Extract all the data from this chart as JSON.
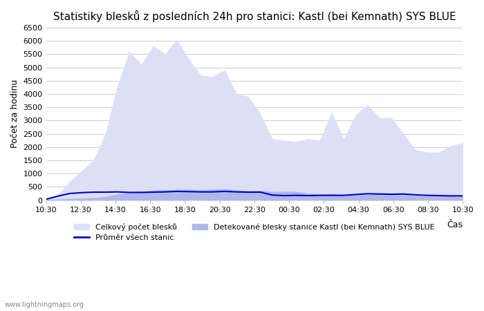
{
  "title": "Statistiky blesků z posledních 24h pro stanici: Kastl (bei Kemnath) SYS BLUE",
  "ylabel": "Počet za hodinu",
  "xlabel": "Čas",
  "watermark": "www.lightningmaps.org",
  "xtick_labels": [
    "10:30",
    "12:30",
    "14:30",
    "16:30",
    "18:30",
    "20:30",
    "22:30",
    "00:30",
    "02:30",
    "04:30",
    "06:30",
    "08:30",
    "10:30"
  ],
  "ylim": [
    0,
    6500
  ],
  "yticks": [
    0,
    500,
    1000,
    1500,
    2000,
    2500,
    3000,
    3500,
    4000,
    4500,
    5000,
    5500,
    6000,
    6500
  ],
  "bg_color": "#ffffff",
  "grid_color": "#cccccc",
  "total_fill_color": "#dde0f5",
  "total_fill_edge": "#c0c4e8",
  "station_fill_color": "#b0b8e8",
  "station_fill_edge": "#6070cc",
  "avg_line_color": "#0000cc",
  "legend_total_label": "Celkový počet blesků",
  "legend_station_label": "Detekované blesky stanice Kastl (bei Kemnath) SYS BLUE",
  "legend_avg_label": "Průměr všech stanic",
  "total_values": [
    50,
    200,
    700,
    1100,
    1500,
    2500,
    4300,
    5600,
    5100,
    5800,
    5500,
    6050,
    5300,
    4700,
    4650,
    4900,
    4000,
    3900,
    3250,
    2300,
    2250,
    2200,
    2300,
    2250,
    3300,
    2300,
    3200,
    3600,
    3100,
    3100,
    2500,
    1900,
    1800,
    1800,
    2050,
    2150
  ],
  "station_values": [
    10,
    30,
    50,
    70,
    90,
    130,
    220,
    290,
    310,
    370,
    380,
    390,
    400,
    380,
    400,
    420,
    370,
    340,
    360,
    310,
    320,
    320,
    250,
    210,
    230,
    180,
    180,
    200,
    240,
    210,
    200,
    160,
    140,
    150,
    160,
    160
  ],
  "avg_values": [
    30,
    150,
    250,
    280,
    300,
    300,
    310,
    290,
    290,
    300,
    310,
    330,
    320,
    310,
    310,
    330,
    310,
    300,
    300,
    190,
    170,
    180,
    170,
    180,
    180,
    180,
    210,
    240,
    230,
    220,
    230,
    200,
    180,
    170,
    160,
    160
  ]
}
